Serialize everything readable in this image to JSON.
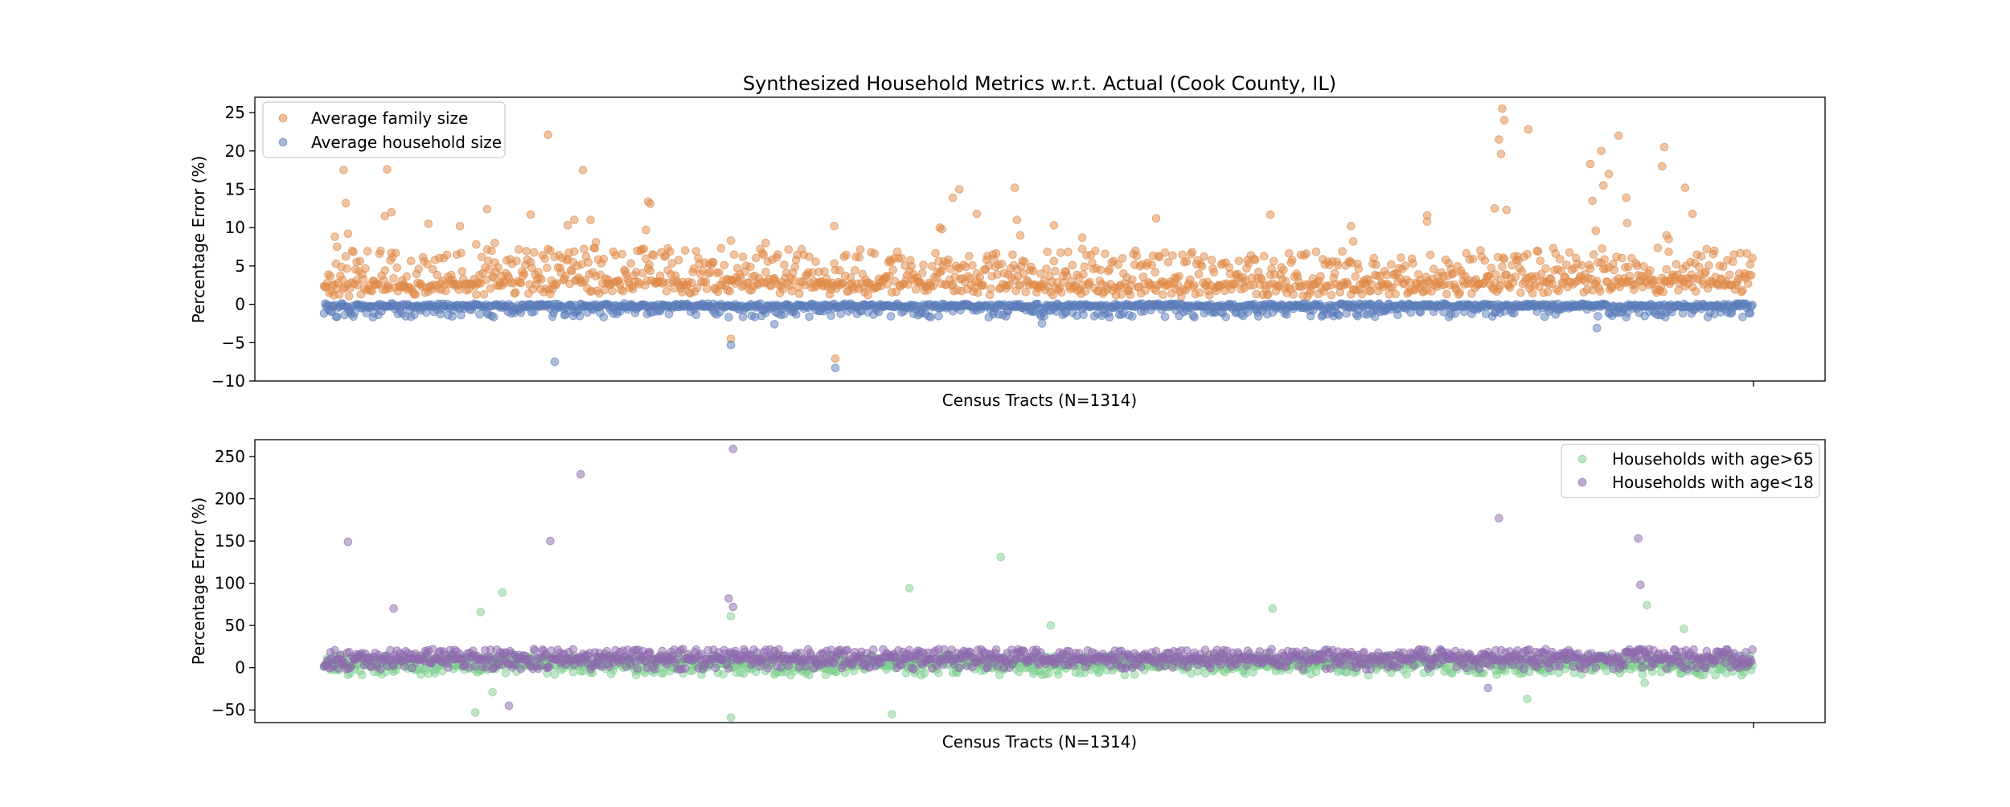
{
  "chart_data": [
    {
      "type": "scatter",
      "title": "Synthesized Household Metrics w.r.t. Actual (Cook County, IL)",
      "xlabel": "Census Tracts (N=1314)",
      "ylabel": "Percentage Error (%)",
      "xlim": [
        0,
        1314
      ],
      "ylim": [
        -10,
        27
      ],
      "yticks": [
        -10,
        -5,
        0,
        5,
        10,
        15,
        20,
        25
      ],
      "legend_position": "top-left",
      "series": [
        {
          "name": "Average family size",
          "color": "#e08a48",
          "baseline_profile": [
            [
              0,
              2.5
            ],
            [
              300,
              3.0
            ],
            [
              600,
              2.5
            ],
            [
              900,
              2.5
            ],
            [
              1200,
              3.0
            ],
            [
              1314,
              3.0
            ]
          ],
          "outliers": [
            [
              10,
              8.8
            ],
            [
              12,
              7.5
            ],
            [
              18,
              17.5
            ],
            [
              20,
              13.2
            ],
            [
              22,
              9.2
            ],
            [
              30,
              5.5
            ],
            [
              56,
              11.5
            ],
            [
              58,
              17.6
            ],
            [
              62,
              12.0
            ],
            [
              96,
              10.5
            ],
            [
              125,
              10.2
            ],
            [
              140,
              7.8
            ],
            [
              150,
              12.4
            ],
            [
              157,
              8.0
            ],
            [
              190,
              11.7
            ],
            [
              206,
              22.1
            ],
            [
              208,
              7.0
            ],
            [
              224,
              10.3
            ],
            [
              230,
              11.0
            ],
            [
              238,
              17.5
            ],
            [
              245,
              11.0
            ],
            [
              250,
              8.1
            ],
            [
              296,
              9.7
            ],
            [
              298,
              13.4
            ],
            [
              300,
              13.1
            ],
            [
              316,
              7.3
            ],
            [
              374,
              8.3
            ],
            [
              374,
              -4.5
            ],
            [
              406,
              8.0
            ],
            [
              469,
              10.2
            ],
            [
              470,
              -7.1
            ],
            [
              520,
              5.8
            ],
            [
              566,
              10.0
            ],
            [
              568,
              9.8
            ],
            [
              578,
              13.9
            ],
            [
              584,
              15.0
            ],
            [
              600,
              11.8
            ],
            [
              635,
              15.2
            ],
            [
              637,
              11.0
            ],
            [
              640,
              9.0
            ],
            [
              671,
              10.3
            ],
            [
              697,
              8.7
            ],
            [
              697,
              7.2
            ],
            [
              765,
              11.2
            ],
            [
              870,
              11.7
            ],
            [
              944,
              10.2
            ],
            [
              946,
              8.2
            ],
            [
              1014,
              11.6
            ],
            [
              1014,
              10.8
            ],
            [
              1076,
              12.5
            ],
            [
              1080,
              21.5
            ],
            [
              1082,
              19.6
            ],
            [
              1083,
              25.5
            ],
            [
              1085,
              24.0
            ],
            [
              1087,
              12.3
            ],
            [
              1107,
              22.8
            ],
            [
              1164,
              18.3
            ],
            [
              1166,
              13.5
            ],
            [
              1169,
              9.6
            ],
            [
              1174,
              20.0
            ],
            [
              1176,
              15.5
            ],
            [
              1181,
              17.0
            ],
            [
              1190,
              22.0
            ],
            [
              1197,
              13.9
            ],
            [
              1198,
              10.6
            ],
            [
              1230,
              18.0
            ],
            [
              1232,
              20.5
            ],
            [
              1234,
              9.0
            ],
            [
              1236,
              8.5
            ],
            [
              1251,
              15.2
            ],
            [
              1258,
              11.8
            ]
          ]
        },
        {
          "name": "Average household size",
          "color": "#5b7dba",
          "baseline_profile": [
            [
              0,
              -0.3
            ],
            [
              1314,
              -0.3
            ]
          ],
          "outliers": [
            [
              212,
              -7.5
            ],
            [
              374,
              -5.3
            ],
            [
              470,
              -8.3
            ],
            [
              414,
              -2.6
            ],
            [
              660,
              -2.5
            ],
            [
              1170,
              -3.1
            ]
          ]
        }
      ]
    },
    {
      "type": "scatter",
      "title": "",
      "xlabel": "Census Tracts (N=1314)",
      "ylabel": "Percentage Error (%)",
      "xlim": [
        0,
        1314
      ],
      "ylim": [
        -65,
        270
      ],
      "yticks": [
        -50,
        0,
        50,
        100,
        150,
        200,
        250
      ],
      "legend_position": "top-right",
      "series": [
        {
          "name": "Households with age>65",
          "color": "#7fcf8f",
          "baseline_profile": [
            [
              0,
              3
            ],
            [
              1314,
              3
            ]
          ],
          "outliers": [
            [
              144,
              66
            ],
            [
              164,
              89
            ],
            [
              139,
              -53
            ],
            [
              155,
              -29
            ],
            [
              374,
              61
            ],
            [
              374,
              -59
            ],
            [
              538,
              94
            ],
            [
              622,
              131
            ],
            [
              522,
              -55
            ],
            [
              668,
              50
            ],
            [
              872,
              70
            ],
            [
              1216,
              74
            ],
            [
              1250,
              46
            ],
            [
              1106,
              -37
            ],
            [
              1214,
              -18
            ]
          ]
        },
        {
          "name": "Households with age<18",
          "color": "#8e6aae",
          "baseline_profile": [
            [
              0,
              10
            ],
            [
              1314,
              10
            ]
          ],
          "outliers": [
            [
              22,
              149
            ],
            [
              64,
              70
            ],
            [
              208,
              150
            ],
            [
              236,
              229
            ],
            [
              376,
              259
            ],
            [
              376,
              72
            ],
            [
              372,
              82
            ],
            [
              1080,
              177
            ],
            [
              1208,
              153
            ],
            [
              1210,
              98
            ],
            [
              170,
              -45
            ],
            [
              1070,
              -24
            ]
          ]
        }
      ]
    }
  ]
}
